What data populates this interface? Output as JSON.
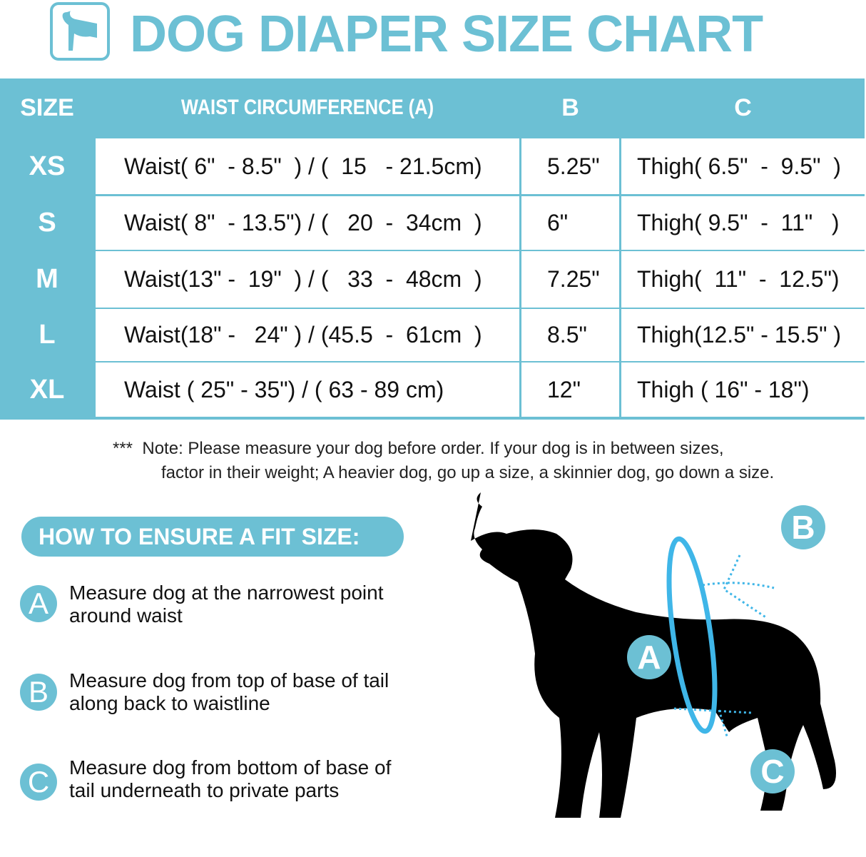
{
  "header": {
    "title": "DOG DIAPER SIZE CHART",
    "logo_icon": "dog-diaper-icon"
  },
  "colors": {
    "accent": "#6cc0d4",
    "ring": "#3fb6e8"
  },
  "table": {
    "columns": [
      "SIZE",
      "WAIST CIRCUMFERENCE (A)",
      "B",
      "C"
    ],
    "rows": [
      {
        "size": "XS",
        "waist": "Waist( 6\"  - 8.5\"  ) / (  15   - 21.5cm)",
        "b": "5.25\"",
        "c": "Thigh( 6.5\"  -  9.5\"  )"
      },
      {
        "size": "S",
        "waist": "Waist( 8\"  - 13.5\") / (   20  -  34cm  )",
        "b": "6\"",
        "c": "Thigh( 9.5\"  -  11\"   )"
      },
      {
        "size": "M",
        "waist": "Waist(13\" -  19\"  ) / (   33  -  48cm  )",
        "b": "7.25\"",
        "c": "Thigh(  11\"  -  12.5\")"
      },
      {
        "size": "L",
        "waist": "Waist(18\" -   24\" ) / (45.5  -  61cm  )",
        "b": "8.5\"",
        "c": "Thigh(12.5\" - 15.5\" )"
      },
      {
        "size": "XL",
        "waist": "Waist ( 25\" - 35\") / ( 63 - 89 cm)",
        "b": "12\"",
        "c": "Thigh ( 16\" - 18\")"
      }
    ]
  },
  "note": {
    "marker": "***",
    "line1": "Note: Please measure your dog before order. If your dog is in between sizes,",
    "line2": "factor in their weight; A heavier dog, go up a size, a skinnier dog, go down a size."
  },
  "fit": {
    "heading": "HOW TO ENSURE A FIT SIZE:",
    "steps": [
      {
        "letter": "A",
        "text": "Measure dog at the narrowest point around waist"
      },
      {
        "letter": "B",
        "text": "Measure dog from top of base of tail along back to waistline"
      },
      {
        "letter": "C",
        "text": "Measure dog from bottom of base of tail underneath to private parts"
      }
    ]
  },
  "diagram": {
    "labels": [
      "A",
      "B",
      "C"
    ]
  }
}
